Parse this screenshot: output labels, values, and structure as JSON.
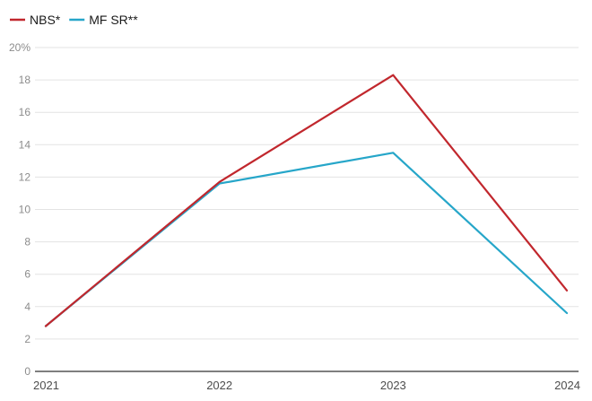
{
  "chart_data": {
    "type": "line",
    "x": [
      "2021",
      "2022",
      "2023",
      "2024"
    ],
    "series": [
      {
        "name": "NBS*",
        "color": "#c1272d",
        "values": [
          2.8,
          11.7,
          18.3,
          5.0
        ]
      },
      {
        "name": "MF SR**",
        "color": "#26a6c9",
        "values": [
          2.8,
          11.6,
          13.5,
          3.6
        ]
      }
    ],
    "yticks": [
      "0",
      "2",
      "4",
      "6",
      "8",
      "10",
      "12",
      "14",
      "16",
      "18",
      "20%"
    ],
    "ylim": [
      0,
      20
    ],
    "grid": true,
    "legend_position": "top-left"
  }
}
